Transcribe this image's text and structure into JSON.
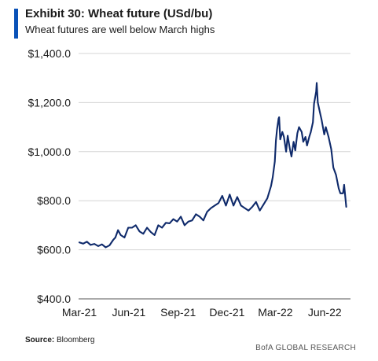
{
  "header": {
    "title": "Exhibit 30: Wheat future (USd/bu)",
    "subtitle": "Wheat futures are well below March highs",
    "accent_color": "#0a52b8"
  },
  "source": {
    "label": "Source:",
    "text": "Bloomberg"
  },
  "footer": {
    "text": "BofA GLOBAL RESEARCH"
  },
  "chart_data": {
    "type": "line",
    "title": "Exhibit 30: Wheat future (USd/bu)",
    "ylim": [
      400,
      1400
    ],
    "yticks": [
      400,
      600,
      800,
      1000,
      1200,
      1400
    ],
    "ytick_labels": [
      "$400.0",
      "$600.0",
      "$800.0",
      "$1,000.0",
      "$1,200.0",
      "$1,400.0"
    ],
    "xticks": [
      "Mar-21",
      "Jun-21",
      "Sep-21",
      "Dec-21",
      "Mar-22",
      "Jun-22"
    ],
    "grid": "horizontal",
    "line_color": "#0f2a6b",
    "series": [
      {
        "x": [
          "2021-03-01",
          "2021-03-08",
          "2021-03-15",
          "2021-03-22",
          "2021-03-29",
          "2021-04-05",
          "2021-04-12",
          "2021-04-19",
          "2021-04-26",
          "2021-05-03",
          "2021-05-07",
          "2021-05-12",
          "2021-05-17",
          "2021-05-24",
          "2021-05-31",
          "2021-06-07",
          "2021-06-14",
          "2021-06-21",
          "2021-06-28",
          "2021-07-05",
          "2021-07-12",
          "2021-07-19",
          "2021-07-26",
          "2021-08-02",
          "2021-08-09",
          "2021-08-16",
          "2021-08-23",
          "2021-08-30",
          "2021-09-06",
          "2021-09-13",
          "2021-09-20",
          "2021-09-27",
          "2021-10-04",
          "2021-10-11",
          "2021-10-18",
          "2021-10-25",
          "2021-11-01",
          "2021-11-08",
          "2021-11-15",
          "2021-11-22",
          "2021-11-29",
          "2021-12-06",
          "2021-12-13",
          "2021-12-20",
          "2021-12-27",
          "2022-01-03",
          "2022-01-10",
          "2022-01-17",
          "2022-01-24",
          "2022-01-31",
          "2022-02-07",
          "2022-02-14",
          "2022-02-21",
          "2022-02-24",
          "2022-02-28",
          "2022-03-02",
          "2022-03-04",
          "2022-03-07",
          "2022-03-08",
          "2022-03-10",
          "2022-03-14",
          "2022-03-17",
          "2022-03-21",
          "2022-03-24",
          "2022-03-28",
          "2022-03-31",
          "2022-04-04",
          "2022-04-07",
          "2022-04-11",
          "2022-04-14",
          "2022-04-19",
          "2022-04-22",
          "2022-04-26",
          "2022-04-29",
          "2022-05-03",
          "2022-05-06",
          "2022-05-10",
          "2022-05-12",
          "2022-05-16",
          "2022-05-17",
          "2022-05-19",
          "2022-05-23",
          "2022-05-26",
          "2022-05-31",
          "2022-06-03",
          "2022-06-08",
          "2022-06-13",
          "2022-06-17",
          "2022-06-22",
          "2022-06-27",
          "2022-06-30",
          "2022-07-05",
          "2022-07-07",
          "2022-07-11"
        ],
        "y": [
          630,
          625,
          633,
          620,
          624,
          615,
          622,
          610,
          618,
          640,
          650,
          680,
          660,
          650,
          690,
          690,
          700,
          675,
          665,
          690,
          672,
          660,
          700,
          690,
          710,
          708,
          725,
          715,
          735,
          700,
          715,
          720,
          745,
          735,
          720,
          755,
          770,
          780,
          790,
          820,
          780,
          825,
          780,
          815,
          780,
          770,
          760,
          775,
          795,
          760,
          785,
          810,
          860,
          895,
          960,
          1045,
          1090,
          1135,
          1140,
          1050,
          1080,
          1060,
          1000,
          1065,
          1010,
          980,
          1040,
          1005,
          1075,
          1100,
          1080,
          1040,
          1060,
          1025,
          1060,
          1080,
          1120,
          1195,
          1245,
          1280,
          1200,
          1160,
          1130,
          1070,
          1100,
          1060,
          1010,
          935,
          905,
          850,
          830,
          830,
          865,
          775
        ]
      }
    ]
  }
}
